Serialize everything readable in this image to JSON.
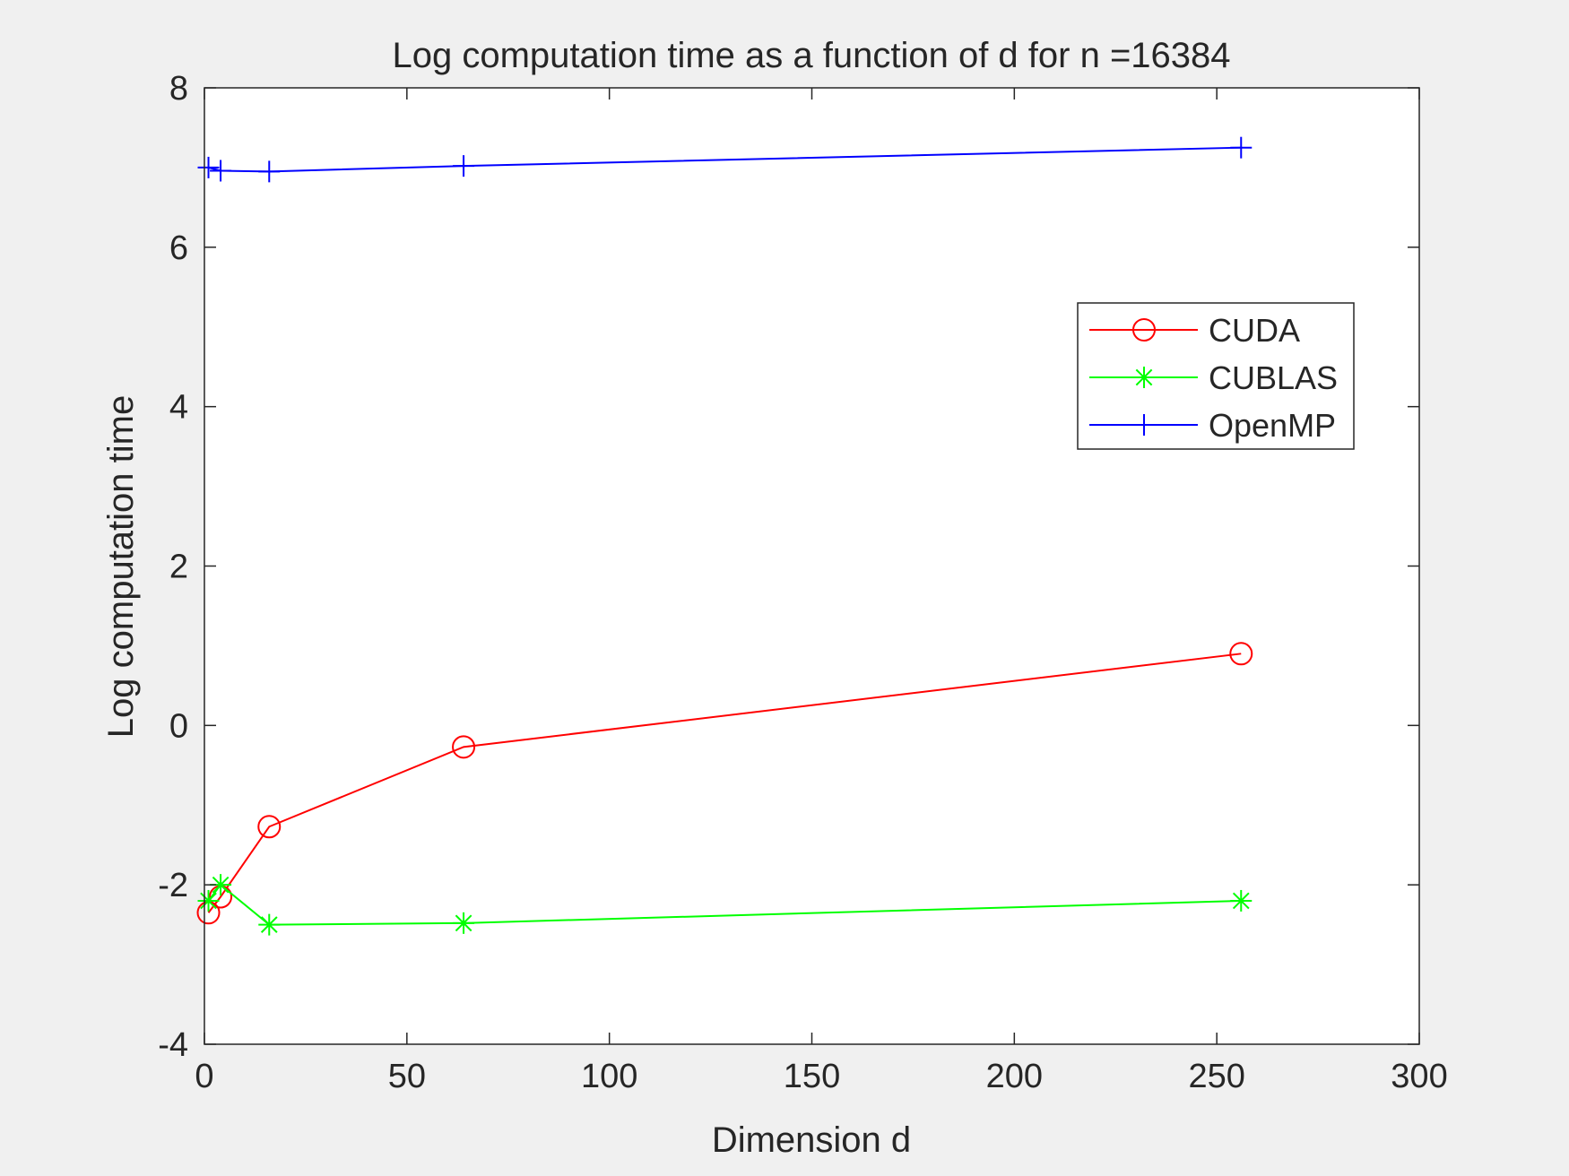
{
  "chart_data": {
    "type": "line",
    "title": "Log computation time as a function of d for n =16384",
    "xlabel": "Dimension d",
    "ylabel": "Log computation time",
    "xlim": [
      0,
      300
    ],
    "ylim": [
      -4,
      8
    ],
    "xticks": [
      "0",
      "50",
      "100",
      "150",
      "200",
      "250",
      "300"
    ],
    "yticks": [
      "-4",
      "-2",
      "0",
      "2",
      "4",
      "6",
      "8"
    ],
    "grid": false,
    "legend_position": "upper-right",
    "series": [
      {
        "name": "CUDA",
        "color": "#ff0000",
        "marker": "circle",
        "x": [
          1,
          4,
          16,
          64,
          256
        ],
        "y": [
          -2.35,
          -2.15,
          -1.27,
          -0.27,
          0.9
        ]
      },
      {
        "name": "CUBLAS",
        "color": "#00ff00",
        "marker": "asterisk",
        "x": [
          1,
          4,
          16,
          64,
          256
        ],
        "y": [
          -2.2,
          -2.0,
          -2.5,
          -2.48,
          -2.2
        ]
      },
      {
        "name": "OpenMP",
        "color": "#0000ff",
        "marker": "plus",
        "x": [
          1,
          4,
          16,
          64,
          256
        ],
        "y": [
          7.0,
          6.96,
          6.95,
          7.02,
          7.25
        ]
      }
    ]
  }
}
